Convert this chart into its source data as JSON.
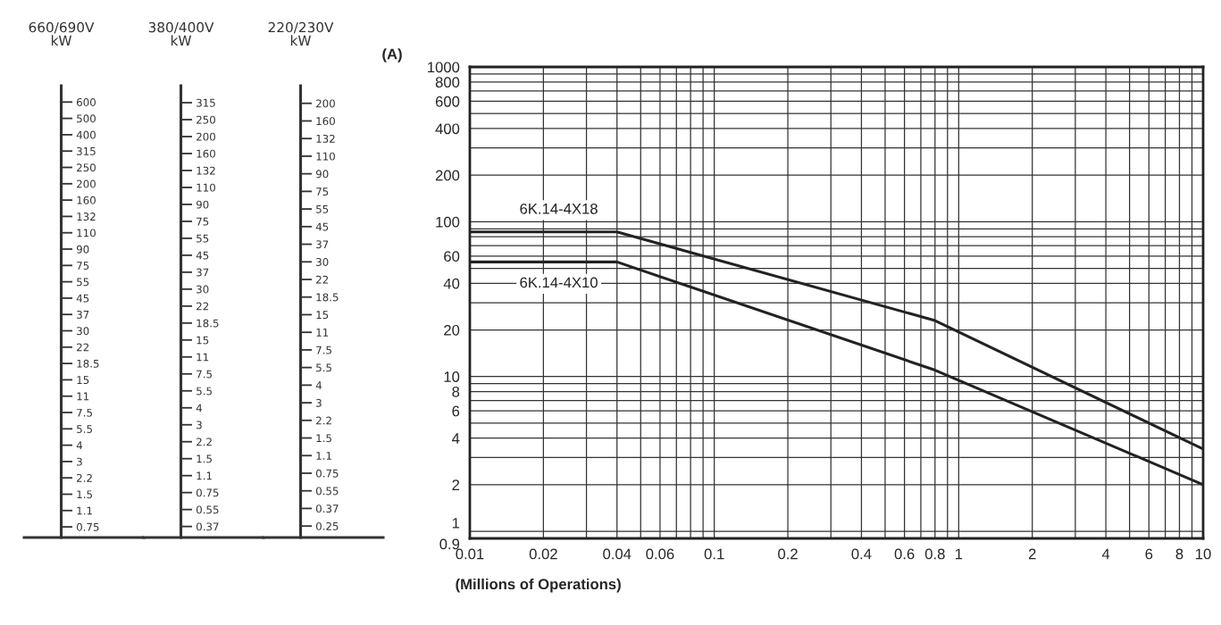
{
  "chart_data": [
    {
      "type": "other",
      "title": "660/690V\nkW",
      "categories": [
        "600",
        "500",
        "400",
        "315",
        "250",
        "200",
        "160",
        "132",
        "110",
        "90",
        "75",
        "55",
        "45",
        "37",
        "30",
        "22",
        "18.5",
        "15",
        "11",
        "7.5",
        "5.5",
        "4",
        "3",
        "2.2",
        "1.5",
        "1.1",
        "0.75"
      ]
    },
    {
      "type": "other",
      "title": "380/400V\nkW",
      "categories": [
        "315",
        "250",
        "200",
        "160",
        "132",
        "110",
        "90",
        "75",
        "55",
        "45",
        "37",
        "30",
        "22",
        "18.5",
        "15",
        "11",
        "7.5",
        "5.5",
        "4",
        "3",
        "2.2",
        "1.5",
        "1.1",
        "0.75",
        "0.55",
        "0.37"
      ]
    },
    {
      "type": "other",
      "title": "220/230V\nkW",
      "categories": [
        "200",
        "160",
        "132",
        "110",
        "90",
        "75",
        "55",
        "45",
        "37",
        "30",
        "22",
        "18.5",
        "15",
        "11",
        "7.5",
        "5.5",
        "4",
        "3",
        "2.2",
        "1.5",
        "1.1",
        "0.75",
        "0.55",
        "0.37",
        "0.25"
      ]
    },
    {
      "type": "line",
      "xlabel": "(Millions of Operations)",
      "ylabel": "(A)",
      "log": "xy",
      "grid": true,
      "x": [
        0.01,
        0.04,
        0.8,
        10
      ],
      "series": [
        {
          "name": "6K.14-4X18",
          "color": "#222222",
          "values": [
            86,
            86,
            23,
            3.4
          ]
        },
        {
          "name": "6K.14-4X10",
          "color": "#222222",
          "values": [
            55,
            55,
            11,
            2.0
          ]
        }
      ],
      "xlim": [
        0.01,
        10
      ],
      "xticks": [
        0.01,
        0.02,
        0.04,
        0.06,
        0.1,
        0.2,
        0.4,
        0.6,
        0.8,
        1,
        2,
        4,
        6,
        8,
        10
      ],
      "ylim": [
        0.9,
        1000
      ],
      "yticks": [
        0.9,
        1,
        2,
        4,
        6,
        8,
        10,
        20,
        40,
        60,
        100,
        200,
        400,
        600,
        800,
        1000
      ]
    }
  ]
}
